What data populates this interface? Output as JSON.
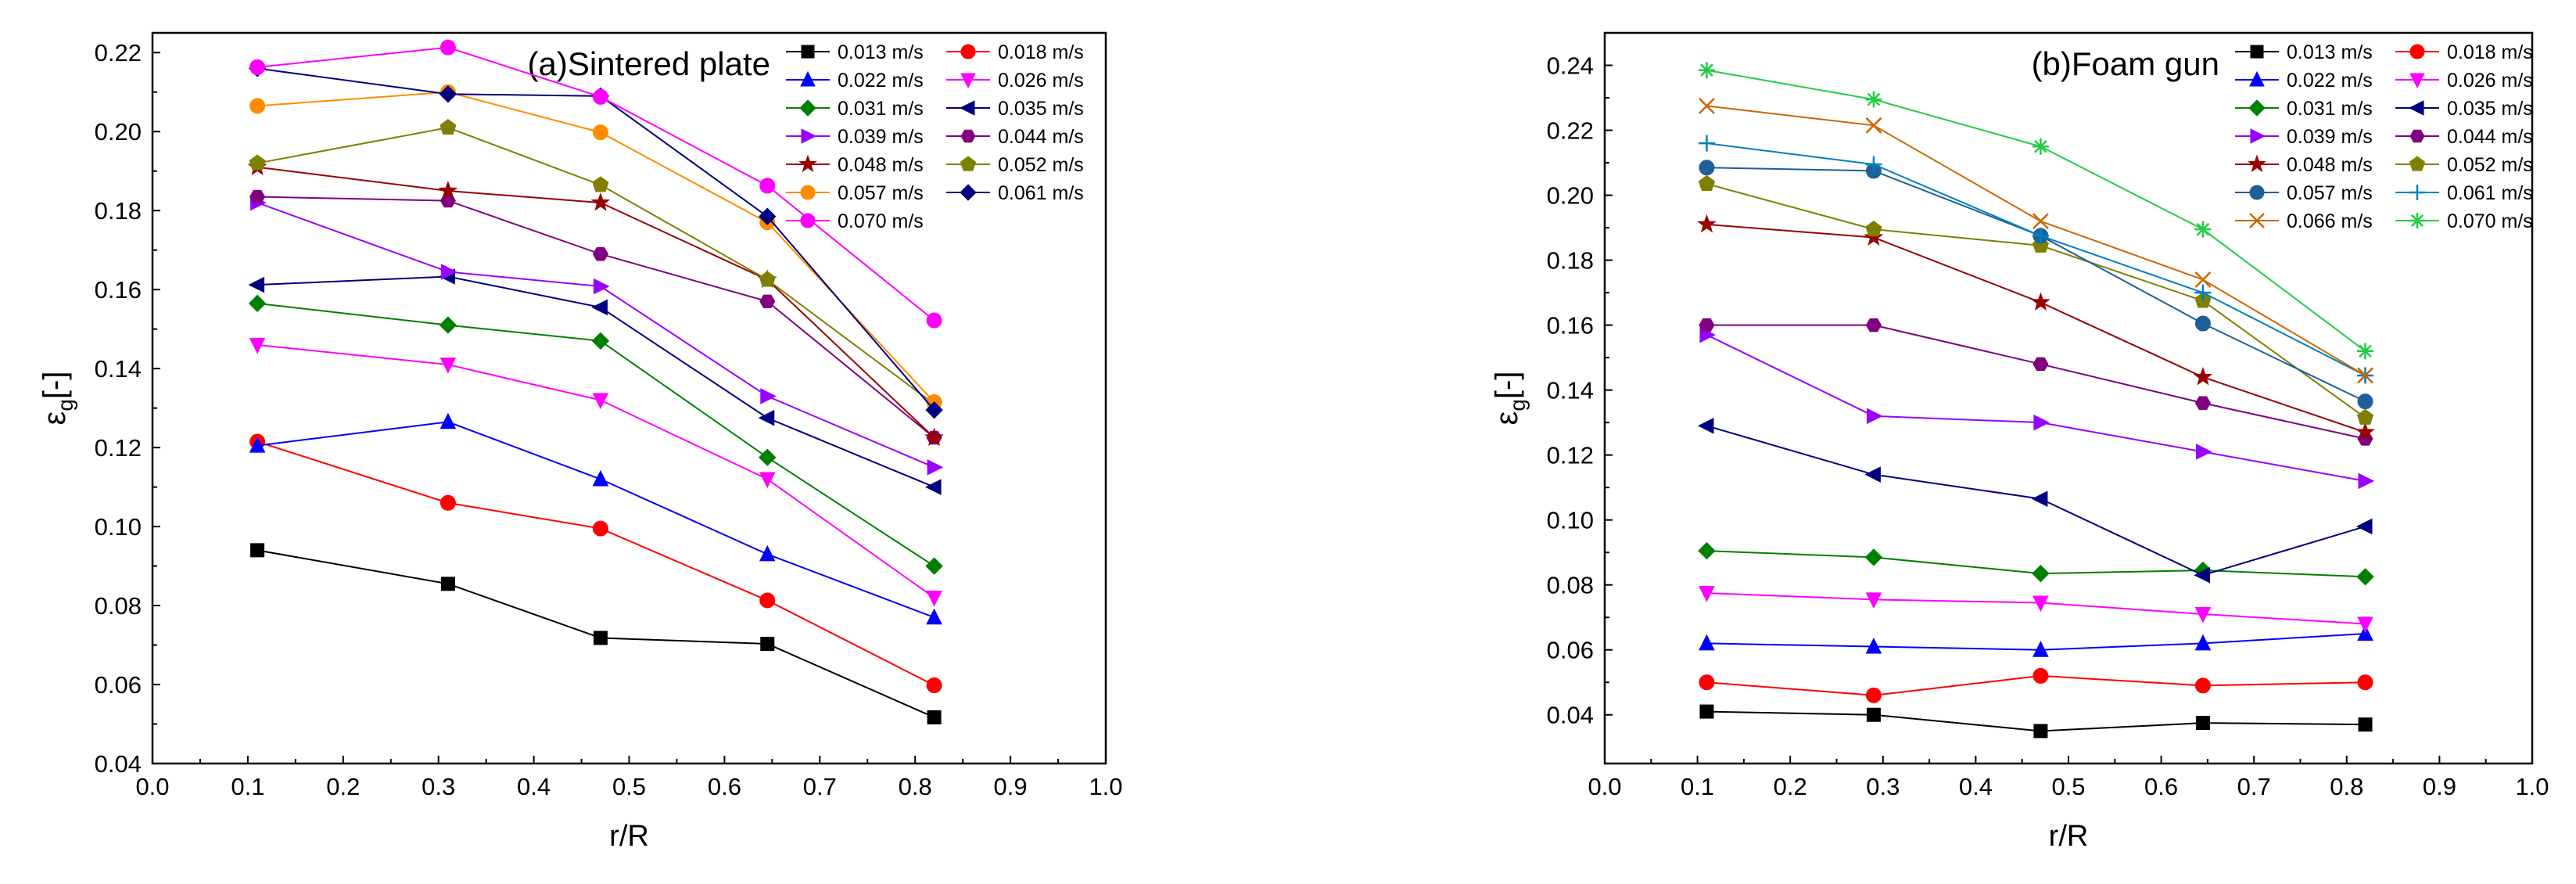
{
  "chart_data": [
    {
      "type": "line",
      "title": "(a)Sintered plate",
      "xlabel": "r/R",
      "ylabel": "εg[-]",
      "ylabel_main": "ε",
      "ylabel_sub": "g",
      "ylabel_tail": "[-]",
      "xlim": [
        0.0,
        1.0
      ],
      "ylim": [
        0.04,
        0.225
      ],
      "xticks": [
        "0.0",
        "0.1",
        "0.2",
        "0.3",
        "0.4",
        "0.5",
        "0.6",
        "0.7",
        "0.8",
        "0.9",
        "1.0"
      ],
      "yticks": [
        "0.04",
        "0.06",
        "0.08",
        "0.10",
        "0.12",
        "0.14",
        "0.16",
        "0.18",
        "0.20",
        "0.22"
      ],
      "x": [
        0.11,
        0.31,
        0.47,
        0.645,
        0.82
      ],
      "series": [
        {
          "name": "0.013 m/s",
          "color": "#000000",
          "marker": "square",
          "values": [
            0.094,
            0.0855,
            0.0718,
            0.0703,
            0.0517
          ]
        },
        {
          "name": "0.018 m/s",
          "color": "#ff0000",
          "marker": "circle",
          "values": [
            0.1215,
            0.106,
            0.0995,
            0.0813,
            0.0598
          ]
        },
        {
          "name": "0.022 m/s",
          "color": "#0000ff",
          "marker": "triangle-up",
          "values": [
            0.1205,
            0.1265,
            0.112,
            0.093,
            0.077
          ]
        },
        {
          "name": "0.026 m/s",
          "color": "#ff00ff",
          "marker": "triangle-down",
          "values": [
            0.146,
            0.141,
            0.132,
            0.112,
            0.082
          ]
        },
        {
          "name": "0.031 m/s",
          "color": "#008000",
          "marker": "diamond",
          "values": [
            0.1565,
            0.151,
            0.147,
            0.1175,
            0.09
          ]
        },
        {
          "name": "0.035 m/s",
          "color": "#000080",
          "marker": "triangle-left",
          "values": [
            0.1612,
            0.1633,
            0.1555,
            0.1275,
            0.11
          ]
        },
        {
          "name": "0.039 m/s",
          "color": "#9900ff",
          "marker": "triangle-right",
          "values": [
            0.182,
            0.1645,
            0.1608,
            0.133,
            0.115
          ]
        },
        {
          "name": "0.044 m/s",
          "color": "#800080",
          "marker": "hexagon",
          "values": [
            0.1835,
            0.1825,
            0.169,
            0.157,
            0.1225
          ]
        },
        {
          "name": "0.048 m/s",
          "color": "#990000",
          "marker": "star",
          "values": [
            0.191,
            0.185,
            0.182,
            0.1625,
            0.1225
          ]
        },
        {
          "name": "0.052 m/s",
          "color": "#808000",
          "marker": "pentagon",
          "values": [
            0.192,
            0.201,
            0.1865,
            0.1625,
            0.131
          ]
        },
        {
          "name": "0.057 m/s",
          "color": "#ff8c00",
          "marker": "circle",
          "values": [
            0.2065,
            0.21,
            0.1998,
            0.177,
            0.1315
          ]
        },
        {
          "name": "0.061 m/s",
          "color": "#000080",
          "marker": "diamond",
          "values": [
            0.216,
            0.2095,
            0.209,
            0.1785,
            0.1295
          ]
        },
        {
          "name": "0.070 m/s",
          "color": "#ff00ff",
          "marker": "circle",
          "values": [
            0.2163,
            0.2213,
            0.2088,
            0.1863,
            0.1522
          ]
        }
      ]
    },
    {
      "type": "line",
      "title": "(b)Foam gun",
      "xlabel": "r/R",
      "ylabel": "εg[-]",
      "ylabel_main": "ε",
      "ylabel_sub": "g",
      "ylabel_tail": "[-]",
      "xlim": [
        0.0,
        1.0
      ],
      "ylim": [
        0.025,
        0.25
      ],
      "xticks": [
        "0.0",
        "0.1",
        "0.2",
        "0.3",
        "0.4",
        "0.5",
        "0.6",
        "0.7",
        "0.8",
        "0.9",
        "1.0"
      ],
      "yticks": [
        "0.04",
        "0.06",
        "0.08",
        "0.10",
        "0.12",
        "0.14",
        "0.16",
        "0.18",
        "0.20",
        "0.22",
        "0.24"
      ],
      "x": [
        0.11,
        0.29,
        0.47,
        0.645,
        0.82
      ],
      "series": [
        {
          "name": "0.013 m/s",
          "color": "#000000",
          "marker": "square",
          "values": [
            0.041,
            0.04,
            0.035,
            0.0375,
            0.037
          ]
        },
        {
          "name": "0.018 m/s",
          "color": "#ff0000",
          "marker": "circle",
          "values": [
            0.05,
            0.046,
            0.052,
            0.049,
            0.05
          ]
        },
        {
          "name": "0.022 m/s",
          "color": "#0000ff",
          "marker": "triangle-up",
          "values": [
            0.062,
            0.061,
            0.06,
            0.062,
            0.065
          ]
        },
        {
          "name": "0.026 m/s",
          "color": "#ff00ff",
          "marker": "triangle-down",
          "values": [
            0.0775,
            0.0755,
            0.0745,
            0.071,
            0.068
          ]
        },
        {
          "name": "0.031 m/s",
          "color": "#008000",
          "marker": "diamond",
          "values": [
            0.0905,
            0.0885,
            0.0835,
            0.0845,
            0.0825
          ]
        },
        {
          "name": "0.035 m/s",
          "color": "#000080",
          "marker": "triangle-left",
          "values": [
            0.129,
            0.114,
            0.1065,
            0.083,
            0.098
          ]
        },
        {
          "name": "0.039 m/s",
          "color": "#9900ff",
          "marker": "triangle-right",
          "values": [
            0.157,
            0.132,
            0.13,
            0.121,
            0.112
          ]
        },
        {
          "name": "0.044 m/s",
          "color": "#800080",
          "marker": "hexagon",
          "values": [
            0.16,
            0.16,
            0.148,
            0.136,
            0.125
          ]
        },
        {
          "name": "0.048 m/s",
          "color": "#990000",
          "marker": "star",
          "values": [
            0.191,
            0.187,
            0.167,
            0.144,
            0.127
          ]
        },
        {
          "name": "0.052 m/s",
          "color": "#808000",
          "marker": "pentagon",
          "values": [
            0.2035,
            0.1895,
            0.1845,
            0.1675,
            0.1315
          ]
        },
        {
          "name": "0.057 m/s",
          "color": "#1f5f99",
          "marker": "circle",
          "values": [
            0.2085,
            0.2075,
            0.1875,
            0.1605,
            0.1365
          ]
        },
        {
          "name": "0.061 m/s",
          "color": "#0080c0",
          "marker": "plus",
          "values": [
            0.216,
            0.2095,
            0.1875,
            0.17,
            0.1445
          ]
        },
        {
          "name": "0.066 m/s",
          "color": "#cc6600",
          "marker": "x",
          "values": [
            0.2275,
            0.2215,
            0.192,
            0.174,
            0.1445
          ]
        },
        {
          "name": "0.070 m/s",
          "color": "#22cc44",
          "marker": "asterisk",
          "values": [
            0.2385,
            0.2295,
            0.215,
            0.1895,
            0.152
          ]
        }
      ]
    }
  ]
}
